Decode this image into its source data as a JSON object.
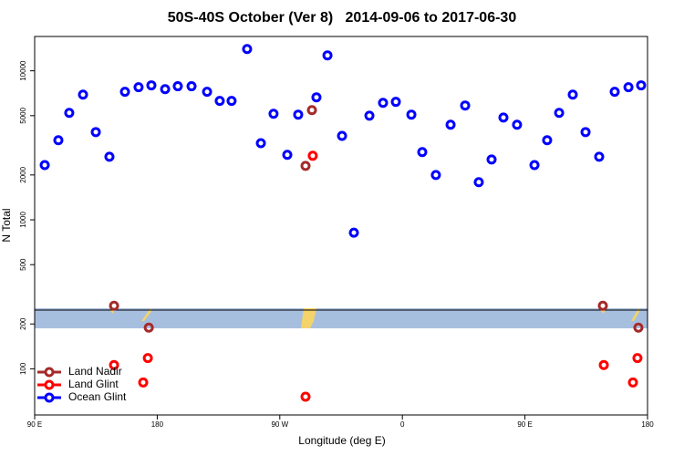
{
  "chart_data": {
    "type": "scatter",
    "title": "50S-40S October (Ver 8)   2014-09-06 to 2017-06-30",
    "x_label": "Longitude (deg E)",
    "y_label": "N Total",
    "log_y": true,
    "legend": "lower left",
    "xlim": [
      90,
      540
    ],
    "ylim": [
      49,
      17000
    ],
    "xticks": [
      {
        "value": 90,
        "label": "90 E"
      },
      180,
      {
        "value": 270,
        "label": "90 W"
      },
      {
        "value": 360,
        "label": "0"
      },
      {
        "value": 450,
        "label": "90 E"
      },
      {
        "value": 540,
        "label": "180"
      }
    ],
    "yticks": [
      100,
      200,
      500,
      1000,
      2000,
      5000,
      10000
    ],
    "series": [
      {
        "name": "Land Nadir",
        "color": "#a52a2a",
        "x": [
          293.6,
          288.9,
          148.3,
          173.8,
          507.2,
          533.3
        ],
        "values": [
          5450,
          2300,
          265,
          189,
          265,
          189
        ]
      },
      {
        "name": "Land Glint",
        "color": "#ff0000",
        "x": [
          294.2,
          148.3,
          173.1,
          169.7,
          288.9,
          507.9,
          532.6,
          529.3
        ],
        "values": [
          2690,
          106,
          118,
          81,
          65,
          106,
          118,
          81
        ]
      },
      {
        "name": "Ocean Glint",
        "color": "#0000ff",
        "x": [
          97.4,
          107.4,
          115.4,
          125.5,
          134.9,
          144.9,
          156.3,
          166.3,
          175.7,
          185.8,
          195.1,
          205.2,
          216.6,
          225.9,
          234.6,
          246.0,
          256.1,
          265.4,
          275.5,
          283.5,
          296.9,
          305.0,
          315.7,
          324.4,
          335.8,
          345.8,
          355.2,
          366.6,
          374.6,
          384.6,
          395.4,
          406.1,
          416.1,
          425.5,
          434.2,
          444.2,
          457.0,
          466.3,
          475.1,
          485.1,
          494.5,
          504.5,
          515.9,
          526.0,
          535.3
        ],
        "values": [
          2330,
          3420,
          5220,
          6920,
          3880,
          2650,
          7230,
          7760,
          7990,
          7530,
          7880,
          7880,
          7230,
          6280,
          6280,
          14000,
          3270,
          5150,
          2730,
          5080,
          6640,
          12700,
          3660,
          820,
          5000,
          6100,
          6190,
          5080,
          2850,
          2000,
          4350,
          5850,
          1790,
          2540,
          4860,
          4350,
          2330,
          3420,
          5220,
          6920,
          3880,
          2650,
          7230,
          7760,
          7990
        ]
      }
    ]
  }
}
